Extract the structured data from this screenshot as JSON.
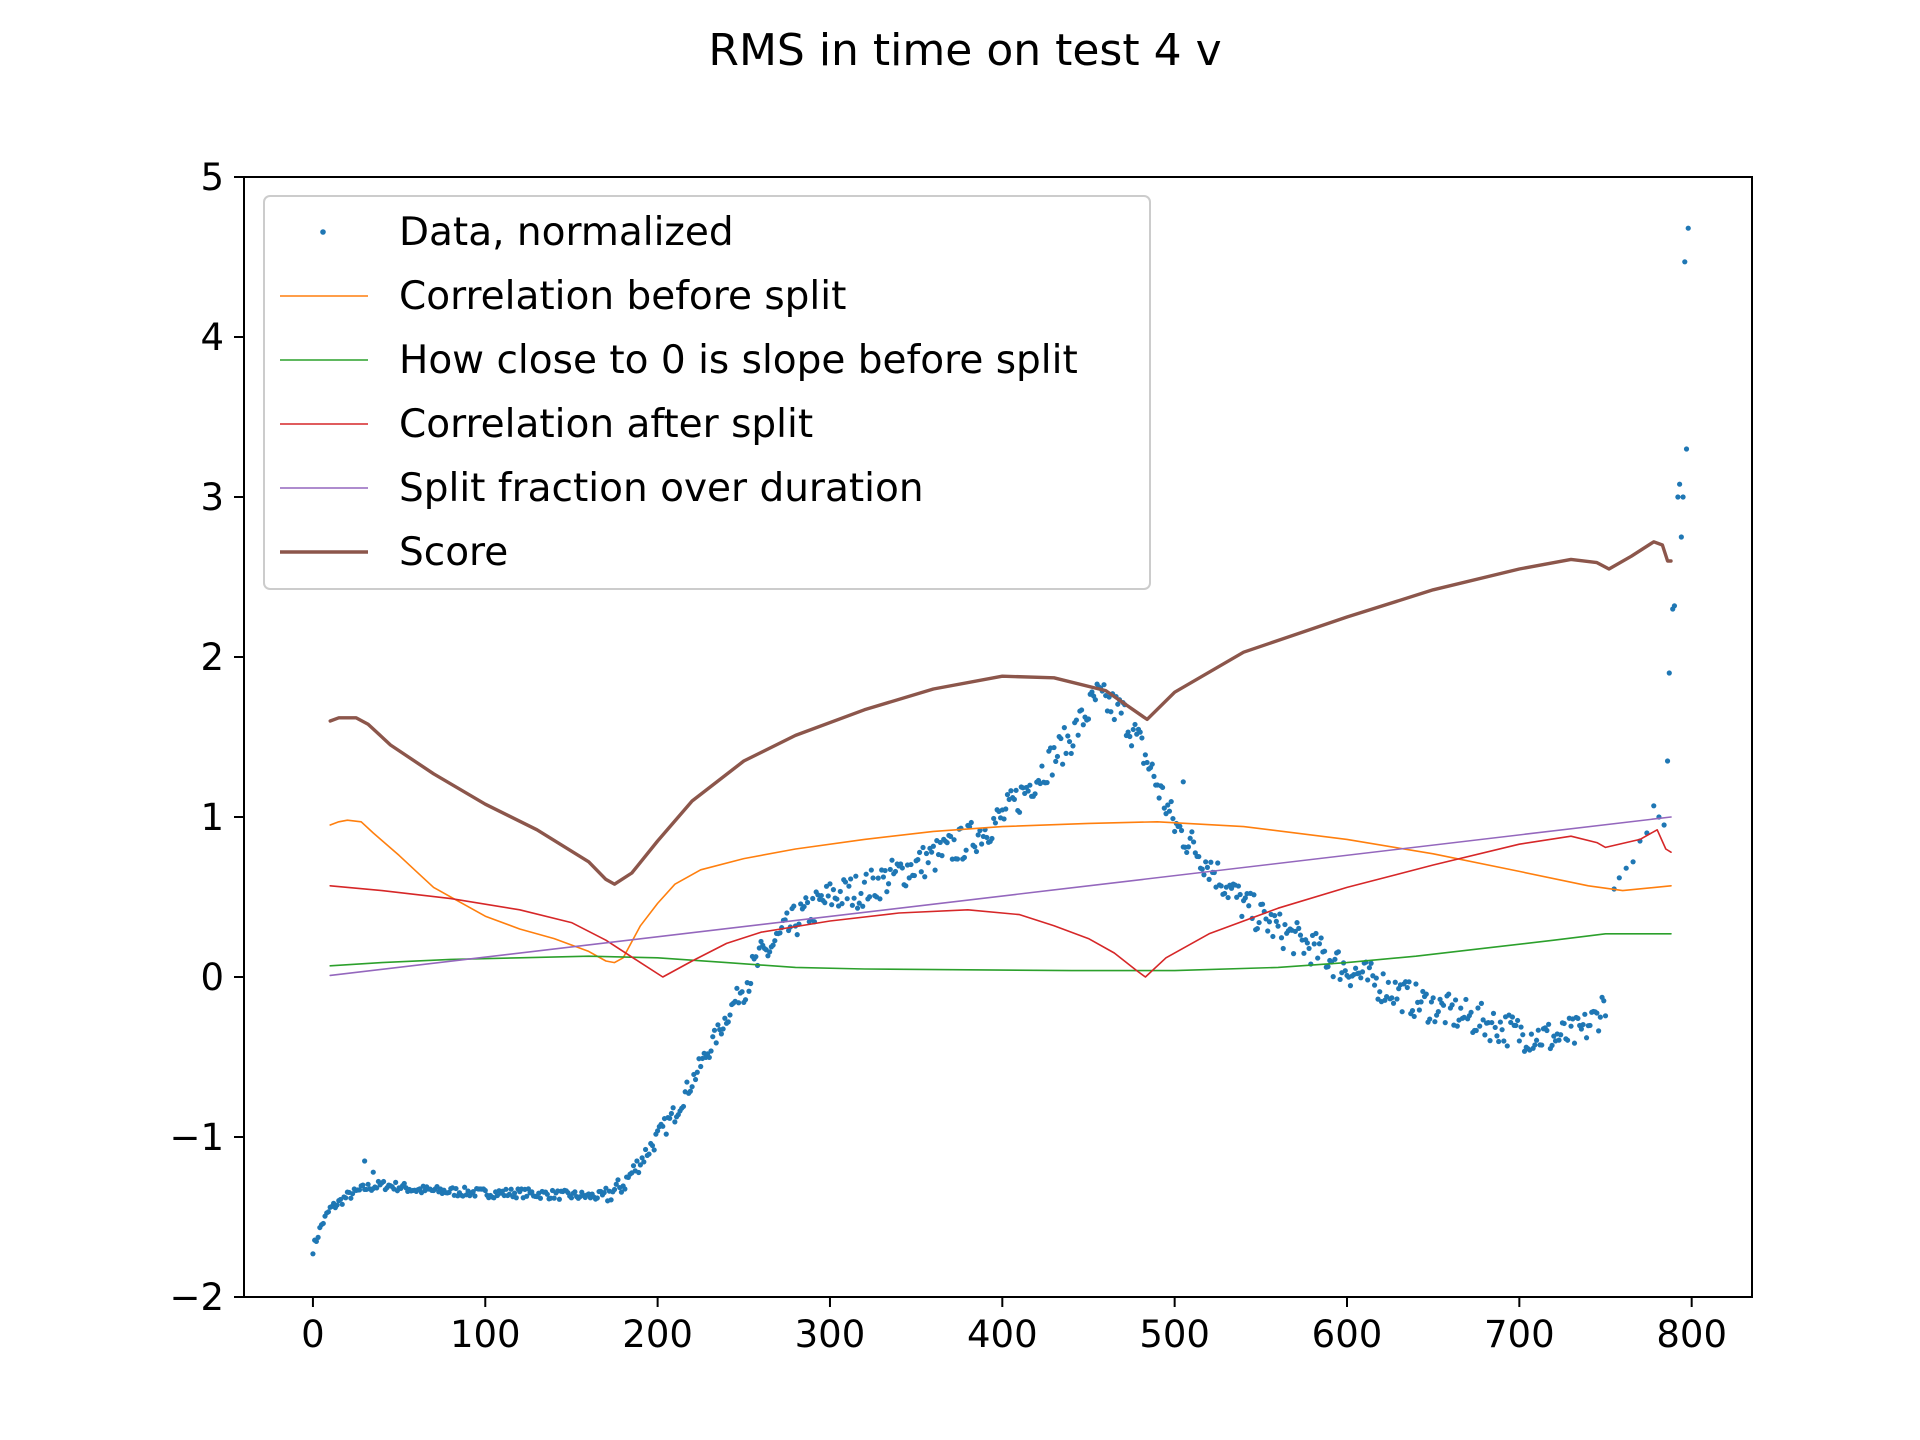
{
  "chart_data": {
    "type": "line",
    "title": "RMS in time on test 4 v",
    "xlabel": "",
    "ylabel": "",
    "xlim": [
      -40,
      835
    ],
    "ylim": [
      -2,
      5
    ],
    "grid": false,
    "legend_position": "top-left",
    "x_ticks": [
      {
        "value": 0,
        "label": "0"
      },
      {
        "value": 100,
        "label": "100"
      },
      {
        "value": 200,
        "label": "200"
      },
      {
        "value": 300,
        "label": "300"
      },
      {
        "value": 400,
        "label": "400"
      },
      {
        "value": 500,
        "label": "500"
      },
      {
        "value": 600,
        "label": "600"
      },
      {
        "value": 700,
        "label": "700"
      },
      {
        "value": 800,
        "label": "800"
      }
    ],
    "y_ticks": [
      {
        "value": -2,
        "label": "−2"
      },
      {
        "value": -1,
        "label": "−1"
      },
      {
        "value": 0,
        "label": "0"
      },
      {
        "value": 1,
        "label": "1"
      },
      {
        "value": 2,
        "label": "2"
      },
      {
        "value": 3,
        "label": "3"
      },
      {
        "value": 4,
        "label": "4"
      },
      {
        "value": 5,
        "label": "5"
      }
    ],
    "scatter_series": {
      "name": "Data, normalized",
      "color": "#1f77b4",
      "keypoints": [
        [
          0,
          -1.7
        ],
        [
          5,
          -1.55
        ],
        [
          10,
          -1.45
        ],
        [
          20,
          -1.37
        ],
        [
          30,
          -1.32
        ],
        [
          40,
          -1.3
        ],
        [
          50,
          -1.31
        ],
        [
          60,
          -1.33
        ],
        [
          80,
          -1.34
        ],
        [
          100,
          -1.35
        ],
        [
          120,
          -1.35
        ],
        [
          140,
          -1.36
        ],
        [
          160,
          -1.37
        ],
        [
          170,
          -1.37
        ],
        [
          180,
          -1.3
        ],
        [
          190,
          -1.15
        ],
        [
          200,
          -1.0
        ],
        [
          210,
          -0.85
        ],
        [
          220,
          -0.65
        ],
        [
          230,
          -0.45
        ],
        [
          240,
          -0.25
        ],
        [
          250,
          -0.05
        ],
        [
          260,
          0.12
        ],
        [
          280,
          0.35
        ],
        [
          300,
          0.5
        ],
        [
          320,
          0.55
        ],
        [
          340,
          0.65
        ],
        [
          360,
          0.75
        ],
        [
          380,
          0.85
        ],
        [
          400,
          1.0
        ],
        [
          420,
          1.25
        ],
        [
          440,
          1.5
        ],
        [
          455,
          1.75
        ],
        [
          470,
          1.65
        ],
        [
          480,
          1.45
        ],
        [
          490,
          1.2
        ],
        [
          500,
          0.95
        ],
        [
          520,
          0.7
        ],
        [
          540,
          0.45
        ],
        [
          560,
          0.3
        ],
        [
          580,
          0.18
        ],
        [
          600,
          0.05
        ],
        [
          620,
          -0.05
        ],
        [
          640,
          -0.15
        ],
        [
          660,
          -0.22
        ],
        [
          680,
          -0.28
        ],
        [
          700,
          -0.35
        ],
        [
          720,
          -0.38
        ],
        [
          735,
          -0.35
        ],
        [
          745,
          -0.25
        ],
        [
          750,
          -0.14
        ]
      ],
      "extra_points": [
        [
          30,
          -1.15
        ],
        [
          35,
          -1.22
        ],
        [
          505,
          1.22
        ],
        [
          755,
          0.55
        ],
        [
          758,
          0.62
        ],
        [
          762,
          0.68
        ],
        [
          766,
          0.72
        ],
        [
          770,
          0.85
        ],
        [
          774,
          0.9
        ],
        [
          778,
          1.07
        ],
        [
          781,
          1.0
        ],
        [
          784,
          0.95
        ],
        [
          786,
          1.35
        ],
        [
          787,
          1.9
        ],
        [
          789,
          2.3
        ],
        [
          790,
          2.32
        ],
        [
          792,
          3.0
        ],
        [
          793,
          3.08
        ],
        [
          794,
          2.75
        ],
        [
          795,
          3.0
        ],
        [
          796,
          4.47
        ],
        [
          797,
          3.3
        ],
        [
          798,
          4.68
        ]
      ]
    },
    "series": [
      {
        "name": "Correlation before split",
        "color": "#ff7f0e",
        "points": [
          [
            10,
            0.95
          ],
          [
            15,
            0.97
          ],
          [
            20,
            0.98
          ],
          [
            28,
            0.97
          ],
          [
            35,
            0.9
          ],
          [
            50,
            0.76
          ],
          [
            60,
            0.66
          ],
          [
            70,
            0.56
          ],
          [
            85,
            0.47
          ],
          [
            100,
            0.38
          ],
          [
            120,
            0.3
          ],
          [
            140,
            0.24
          ],
          [
            160,
            0.16
          ],
          [
            170,
            0.1
          ],
          [
            175,
            0.09
          ],
          [
            180,
            0.12
          ],
          [
            185,
            0.22
          ],
          [
            190,
            0.32
          ],
          [
            200,
            0.46
          ],
          [
            210,
            0.58
          ],
          [
            225,
            0.67
          ],
          [
            250,
            0.74
          ],
          [
            280,
            0.8
          ],
          [
            320,
            0.86
          ],
          [
            360,
            0.91
          ],
          [
            400,
            0.94
          ],
          [
            450,
            0.96
          ],
          [
            490,
            0.97
          ],
          [
            540,
            0.94
          ],
          [
            600,
            0.86
          ],
          [
            650,
            0.77
          ],
          [
            700,
            0.66
          ],
          [
            740,
            0.57
          ],
          [
            760,
            0.54
          ],
          [
            788,
            0.57
          ]
        ]
      },
      {
        "name": "How close to 0 is slope before split",
        "color": "#2ca02c",
        "points": [
          [
            10,
            0.07
          ],
          [
            40,
            0.09
          ],
          [
            80,
            0.11
          ],
          [
            120,
            0.12
          ],
          [
            160,
            0.13
          ],
          [
            200,
            0.12
          ],
          [
            240,
            0.09
          ],
          [
            280,
            0.06
          ],
          [
            320,
            0.05
          ],
          [
            380,
            0.045
          ],
          [
            440,
            0.04
          ],
          [
            500,
            0.04
          ],
          [
            560,
            0.06
          ],
          [
            600,
            0.09
          ],
          [
            640,
            0.13
          ],
          [
            680,
            0.18
          ],
          [
            720,
            0.23
          ],
          [
            750,
            0.27
          ],
          [
            788,
            0.27
          ]
        ]
      },
      {
        "name": "Correlation after split",
        "color": "#d62728",
        "points": [
          [
            10,
            0.57
          ],
          [
            40,
            0.54
          ],
          [
            80,
            0.49
          ],
          [
            120,
            0.42
          ],
          [
            150,
            0.34
          ],
          [
            170,
            0.23
          ],
          [
            190,
            0.09
          ],
          [
            203,
            0.0
          ],
          [
            220,
            0.1
          ],
          [
            240,
            0.21
          ],
          [
            260,
            0.28
          ],
          [
            300,
            0.35
          ],
          [
            340,
            0.4
          ],
          [
            380,
            0.42
          ],
          [
            410,
            0.39
          ],
          [
            430,
            0.32
          ],
          [
            450,
            0.24
          ],
          [
            465,
            0.15
          ],
          [
            478,
            0.04
          ],
          [
            483,
            0.0
          ],
          [
            495,
            0.12
          ],
          [
            520,
            0.27
          ],
          [
            560,
            0.43
          ],
          [
            600,
            0.56
          ],
          [
            650,
            0.7
          ],
          [
            700,
            0.83
          ],
          [
            730,
            0.88
          ],
          [
            745,
            0.84
          ],
          [
            750,
            0.81
          ],
          [
            770,
            0.86
          ],
          [
            780,
            0.92
          ],
          [
            785,
            0.8
          ],
          [
            788,
            0.78
          ]
        ]
      },
      {
        "name": "Split fraction over duration",
        "color": "#9467bd",
        "points": [
          [
            10,
            0.01
          ],
          [
            788,
            1.0
          ]
        ]
      },
      {
        "name": "Score",
        "color": "#8c564b",
        "points": [
          [
            10,
            1.6
          ],
          [
            15,
            1.62
          ],
          [
            25,
            1.62
          ],
          [
            32,
            1.58
          ],
          [
            45,
            1.45
          ],
          [
            70,
            1.27
          ],
          [
            100,
            1.08
          ],
          [
            130,
            0.92
          ],
          [
            160,
            0.72
          ],
          [
            170,
            0.61
          ],
          [
            175,
            0.58
          ],
          [
            185,
            0.65
          ],
          [
            200,
            0.85
          ],
          [
            220,
            1.1
          ],
          [
            250,
            1.35
          ],
          [
            280,
            1.51
          ],
          [
            320,
            1.67
          ],
          [
            360,
            1.8
          ],
          [
            400,
            1.88
          ],
          [
            430,
            1.87
          ],
          [
            460,
            1.79
          ],
          [
            484,
            1.61
          ],
          [
            500,
            1.78
          ],
          [
            540,
            2.03
          ],
          [
            600,
            2.25
          ],
          [
            650,
            2.42
          ],
          [
            700,
            2.55
          ],
          [
            730,
            2.61
          ],
          [
            745,
            2.59
          ],
          [
            752,
            2.55
          ],
          [
            765,
            2.63
          ],
          [
            778,
            2.72
          ],
          [
            783,
            2.7
          ],
          [
            786,
            2.6
          ],
          [
            788,
            2.6
          ]
        ]
      }
    ]
  }
}
